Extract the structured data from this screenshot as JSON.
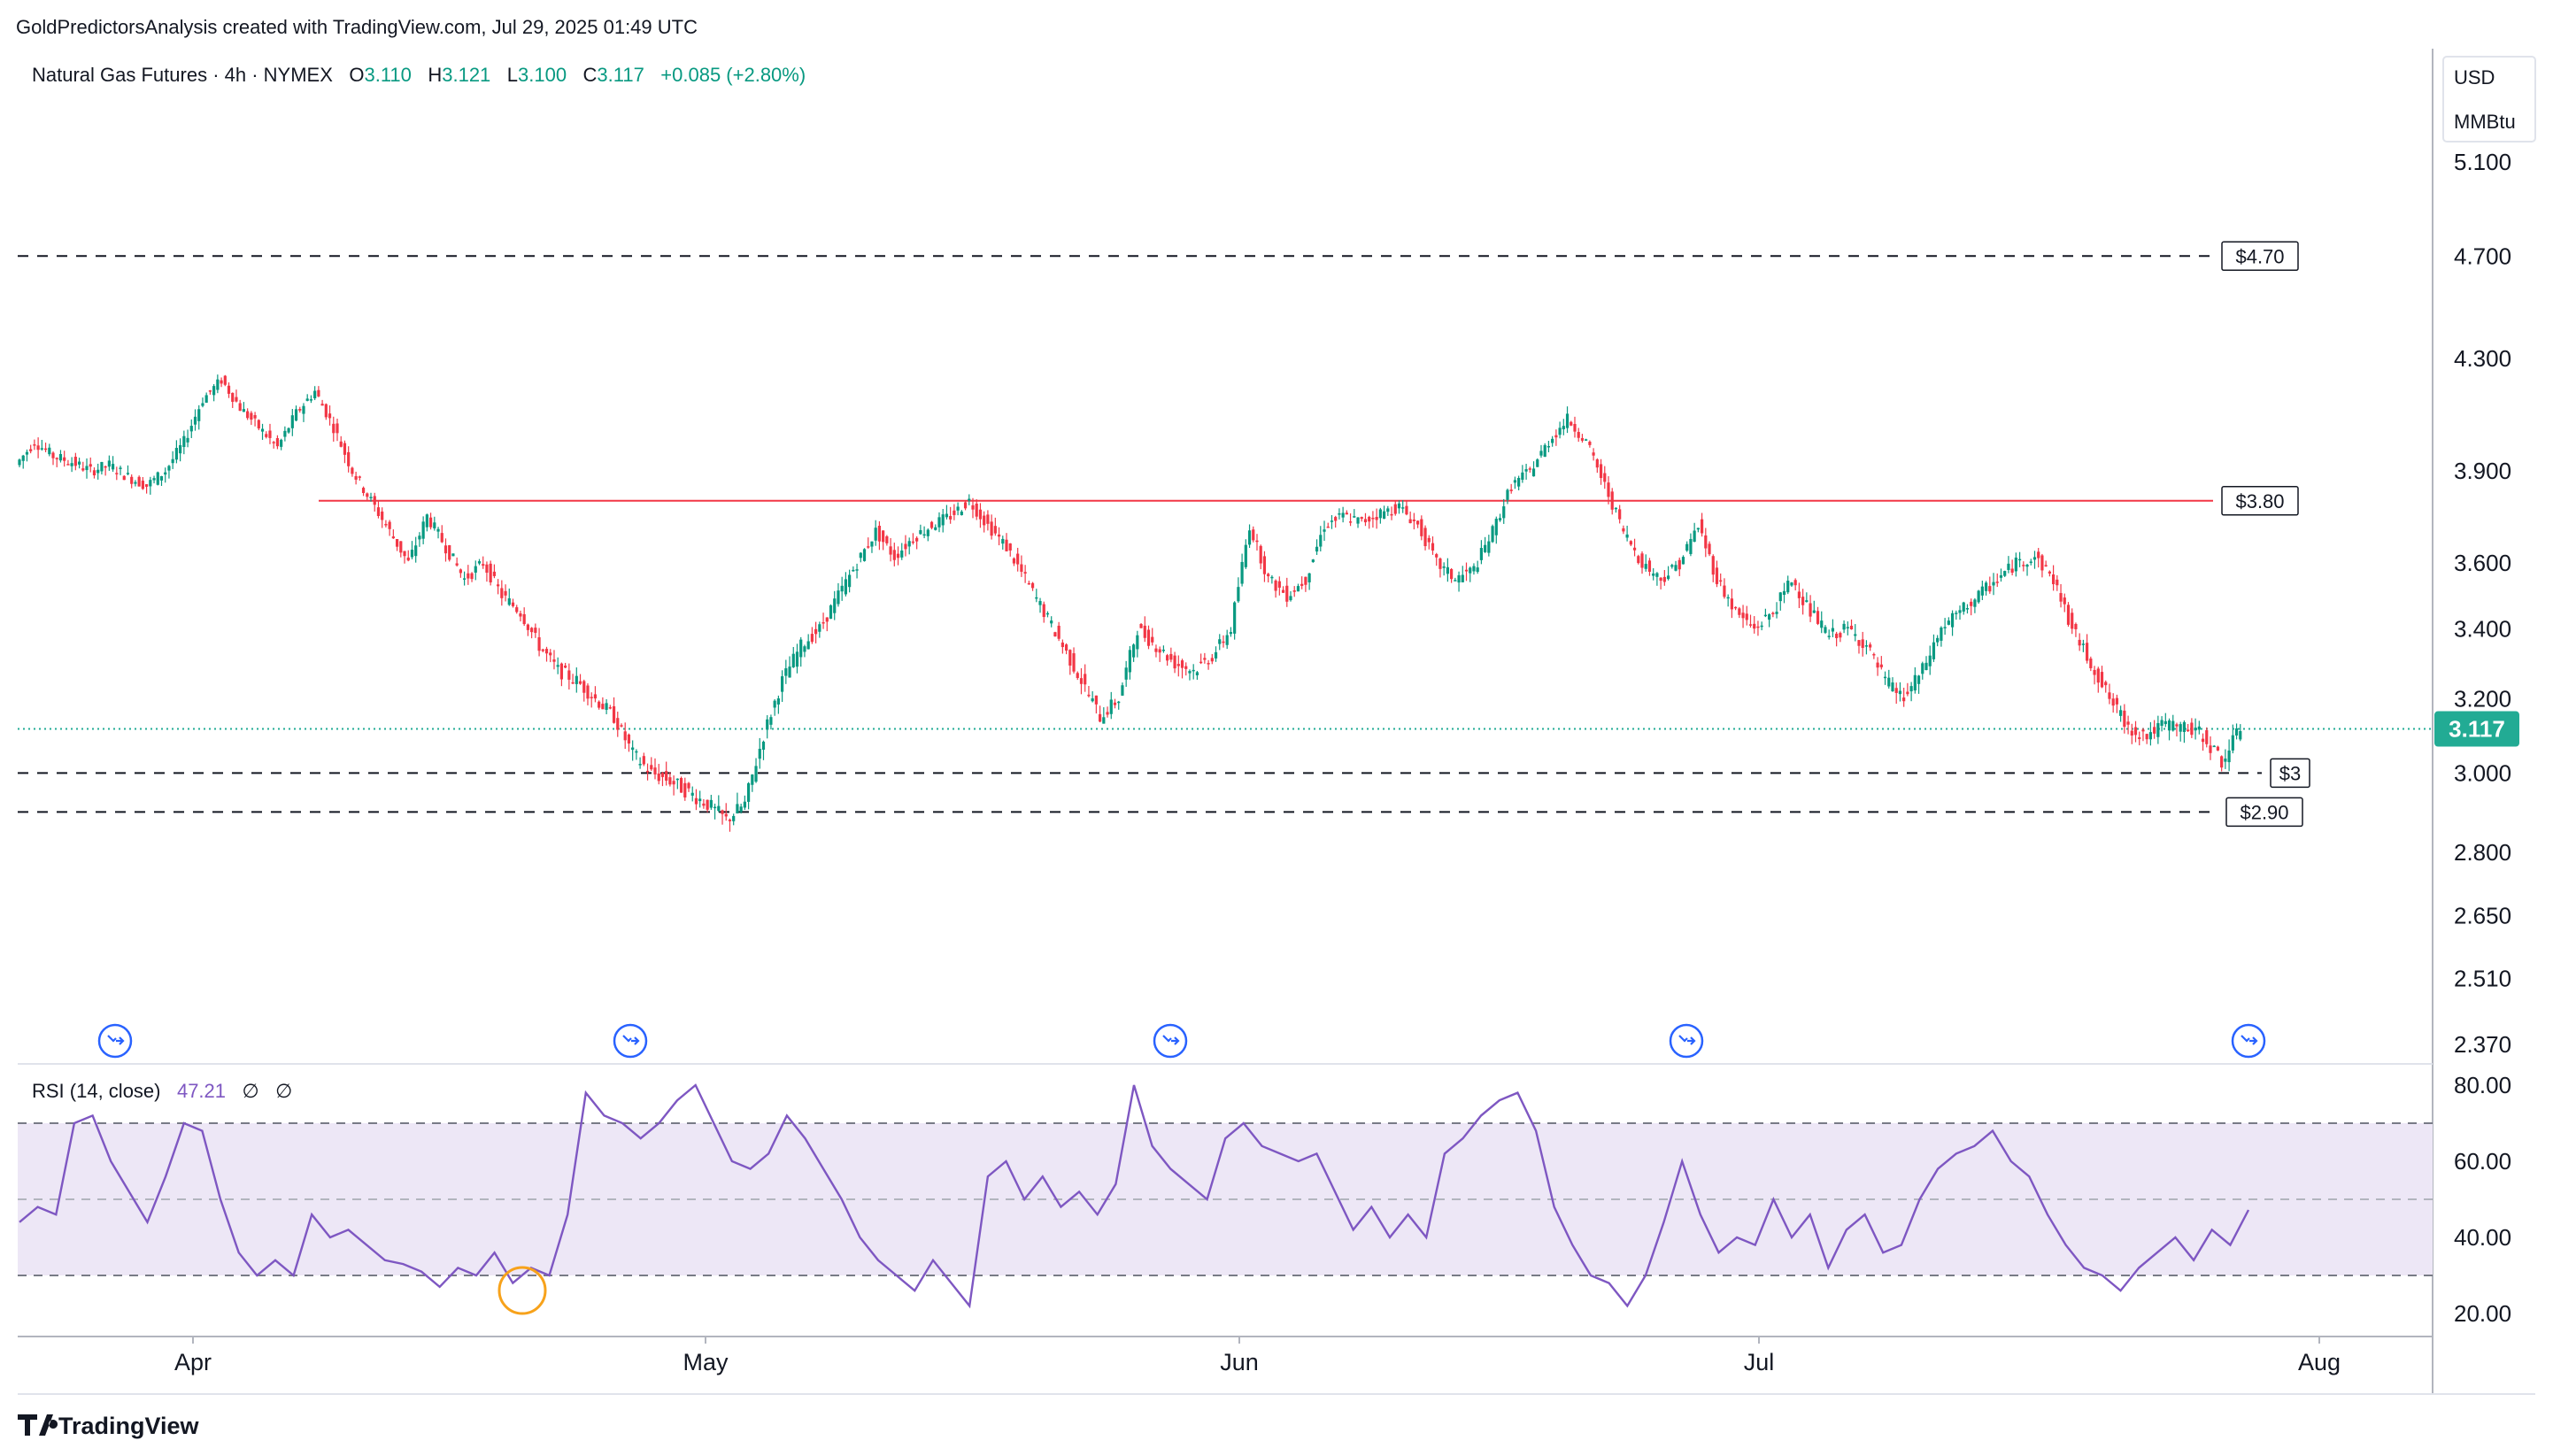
{
  "header": {
    "attribution": "GoldPredictorsAnalysis created with TradingView.com, Jul 29, 2025 01:49 UTC"
  },
  "legend": {
    "symbol": "Natural Gas Futures · 4h · NYMEX",
    "open_label": "O",
    "open": "3.110",
    "high_label": "H",
    "high": "3.121",
    "low_label": "L",
    "low": "3.100",
    "close_label": "C",
    "close": "3.117",
    "change": "+0.085 (+2.80%)"
  },
  "price_axis": {
    "currency": "USD",
    "unit": "MMBtu",
    "ticks": [
      "5.100",
      "4.700",
      "4.300",
      "3.900",
      "3.600",
      "3.400",
      "3.200",
      "3.000",
      "2.800",
      "2.650",
      "2.510",
      "2.370"
    ],
    "last_price": "3.117"
  },
  "time_axis": {
    "ticks": [
      "Apr",
      "May",
      "Jun",
      "Jul",
      "Aug"
    ]
  },
  "levels": [
    {
      "label": "$4.70",
      "value": 4.7,
      "style": "dashed"
    },
    {
      "label": "$3.80",
      "value": 3.8,
      "style": "solid-red"
    },
    {
      "label": "$3",
      "value": 3.0,
      "style": "dashed"
    },
    {
      "label": "$2.90",
      "value": 2.9,
      "style": "dashed"
    }
  ],
  "rsi": {
    "title": "RSI (14, close)",
    "value": "47.21",
    "extra1": "∅",
    "extra2": "∅",
    "ticks": [
      "80.00",
      "60.00",
      "40.00",
      "20.00"
    ],
    "upper_band": 70,
    "middle_band": 50,
    "lower_band": 30
  },
  "colors": {
    "up": "#089981",
    "down": "#f23645",
    "resistance": "#f23645",
    "last_price_bg": "#22ab94",
    "rsi_line": "#7e57c2",
    "rsi_band_fill": "#ede7f6",
    "event_icon": "#2962ff",
    "highlight_circle": "#f7a21b"
  },
  "footer": {
    "brand": "TradingView"
  },
  "chart_data": {
    "type": "line",
    "title": "Natural Gas Futures · 4h · NYMEX",
    "xlabel": "",
    "ylabel": "USD / MMBtu",
    "x_ticks": [
      "Apr",
      "May",
      "Jun",
      "Jul",
      "Aug"
    ],
    "ylim": [
      2.37,
      5.1
    ],
    "log_scale": true,
    "grid": false,
    "series": [
      {
        "values": [
          3.92,
          4.0,
          3.95,
          3.93,
          3.9,
          3.92,
          3.88,
          3.85,
          3.9,
          4.0,
          4.15,
          4.22,
          4.12,
          4.05,
          3.98,
          4.1,
          4.18,
          4.05,
          3.9,
          3.8,
          3.7,
          3.6,
          3.75,
          3.65,
          3.55,
          3.6,
          3.5,
          3.45,
          3.35,
          3.28,
          3.25,
          3.2,
          3.15,
          3.05,
          3.0,
          2.98,
          2.95,
          2.92,
          2.88,
          2.92,
          3.1,
          3.25,
          3.35,
          3.4,
          3.5,
          3.6,
          3.7,
          3.62,
          3.68,
          3.72,
          3.75,
          3.8,
          3.72,
          3.65,
          3.55,
          3.45,
          3.35,
          3.25,
          3.15,
          3.2,
          3.4,
          3.35,
          3.3,
          3.28,
          3.32,
          3.4,
          3.72,
          3.55,
          3.5,
          3.55,
          3.72,
          3.75,
          3.73,
          3.76,
          3.78,
          3.72,
          3.6,
          3.55,
          3.58,
          3.7,
          3.85,
          3.9,
          4.0,
          4.08,
          4.0,
          3.85,
          3.7,
          3.6,
          3.55,
          3.6,
          3.72,
          3.55,
          3.45,
          3.4,
          3.45,
          3.55,
          3.45,
          3.38,
          3.4,
          3.35,
          3.25,
          3.2,
          3.28,
          3.4,
          3.45,
          3.5,
          3.55,
          3.6,
          3.62,
          3.55,
          3.4,
          3.3,
          3.2,
          3.12,
          3.1,
          3.13,
          3.12,
          3.1,
          3.03,
          3.117
        ],
        "x_range": [
          "Mar 24",
          "Jul 28"
        ]
      }
    ],
    "levels": [
      4.7,
      3.8,
      3.0,
      2.9
    ],
    "last_close": 3.117,
    "rsi_panel": {
      "title": "RSI (14, close)",
      "ylim": [
        16,
        82
      ],
      "bands": [
        30,
        50,
        70
      ],
      "last_value": 47.21,
      "values": [
        44,
        48,
        46,
        70,
        72,
        60,
        52,
        44,
        56,
        70,
        68,
        50,
        36,
        30,
        34,
        30,
        46,
        40,
        42,
        38,
        34,
        33,
        31,
        27,
        32,
        30,
        36,
        28,
        32,
        30,
        46,
        78,
        72,
        70,
        66,
        70,
        76,
        80,
        70,
        60,
        58,
        62,
        72,
        66,
        58,
        50,
        40,
        34,
        30,
        26,
        34,
        28,
        22,
        56,
        60,
        50,
        56,
        48,
        52,
        46,
        54,
        80,
        64,
        58,
        54,
        50,
        66,
        70,
        64,
        62,
        60,
        62,
        52,
        42,
        48,
        40,
        46,
        40,
        62,
        66,
        72,
        76,
        78,
        68,
        48,
        38,
        30,
        28,
        22,
        30,
        44,
        60,
        46,
        36,
        40,
        38,
        50,
        40,
        46,
        32,
        42,
        46,
        36,
        38,
        50,
        58,
        62,
        64,
        68,
        60,
        56,
        46,
        38,
        32,
        30,
        26,
        32,
        36,
        40,
        34,
        42,
        38,
        47.21
      ]
    }
  }
}
